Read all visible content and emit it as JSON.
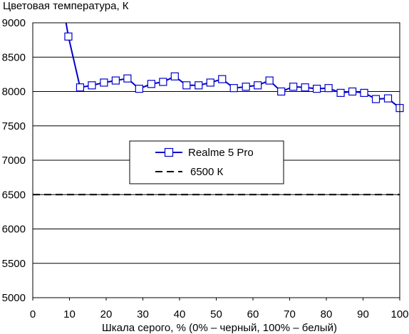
{
  "chart_data": {
    "type": "line",
    "title": "Цветовая температура, К",
    "xlabel": "Шкала серого, % (0% – черный, 100% – белый)",
    "ylabel": "",
    "xlim": [
      0,
      100
    ],
    "ylim": [
      5000,
      9000
    ],
    "xticks": [
      0,
      10,
      20,
      30,
      40,
      50,
      60,
      70,
      80,
      90,
      100
    ],
    "yticks": [
      5000,
      5500,
      6000,
      6500,
      7000,
      7500,
      8000,
      8500,
      9000
    ],
    "grid": "horizontal",
    "legend": "center",
    "series": [
      {
        "name": "Realme 5 Pro",
        "color": "#0000cc",
        "marker": "square",
        "line": "solid",
        "x": [
          6.5,
          9.7,
          12.9,
          16.1,
          19.4,
          22.6,
          25.8,
          29.0,
          32.3,
          35.5,
          38.7,
          41.9,
          45.2,
          48.4,
          51.6,
          54.8,
          58.1,
          61.3,
          64.5,
          67.7,
          71.0,
          74.2,
          77.4,
          80.6,
          83.9,
          87.1,
          90.3,
          93.5,
          96.8,
          100
        ],
        "y": [
          9800,
          8800,
          8060,
          8090,
          8130,
          8160,
          8190,
          8040,
          8110,
          8140,
          8220,
          8090,
          8090,
          8130,
          8180,
          8050,
          8070,
          8090,
          8160,
          8000,
          8070,
          8060,
          8040,
          8050,
          7980,
          8000,
          7980,
          7890,
          7900,
          7760
        ]
      },
      {
        "name": "6500 К",
        "color": "#000000",
        "marker": "none",
        "line": "dashed",
        "x": [
          0,
          100
        ],
        "y": [
          6500,
          6500
        ]
      }
    ]
  }
}
